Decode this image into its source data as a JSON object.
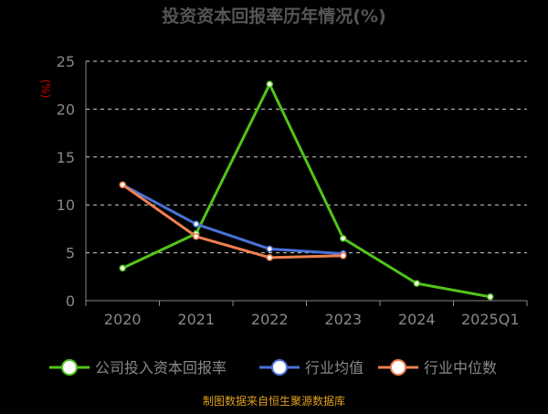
{
  "chart_data": {
    "type": "line",
    "title": "投资资本回报率历年情况(%)",
    "ylabel": "(%)",
    "xlabel": "",
    "categories": [
      "2020",
      "2021",
      "2022",
      "2023",
      "2024",
      "2025Q1"
    ],
    "yticks": [
      0,
      5,
      10,
      15,
      20,
      25
    ],
    "ylim": [
      0,
      25
    ],
    "grid": true,
    "legend_position": "bottom",
    "series": [
      {
        "name": "公司投入资本回报率",
        "color": "#52c41a",
        "values": [
          3.4,
          7.0,
          22.6,
          6.5,
          1.8,
          0.4
        ]
      },
      {
        "name": "行业均值",
        "color": "#4a72d8",
        "values": [
          12.1,
          8.0,
          5.4,
          4.9,
          null,
          null
        ]
      },
      {
        "name": "行业中位数",
        "color": "#f08050",
        "values": [
          12.1,
          6.7,
          4.5,
          4.7,
          null,
          null
        ]
      }
    ],
    "source": "制图数据来自恒生聚源数据库"
  },
  "colors": {
    "background": "#000000",
    "title": "#555555",
    "axis": "#888888",
    "grid": "#cfcfcf",
    "ylabel": "#cc0000",
    "source": "#e0a020"
  }
}
